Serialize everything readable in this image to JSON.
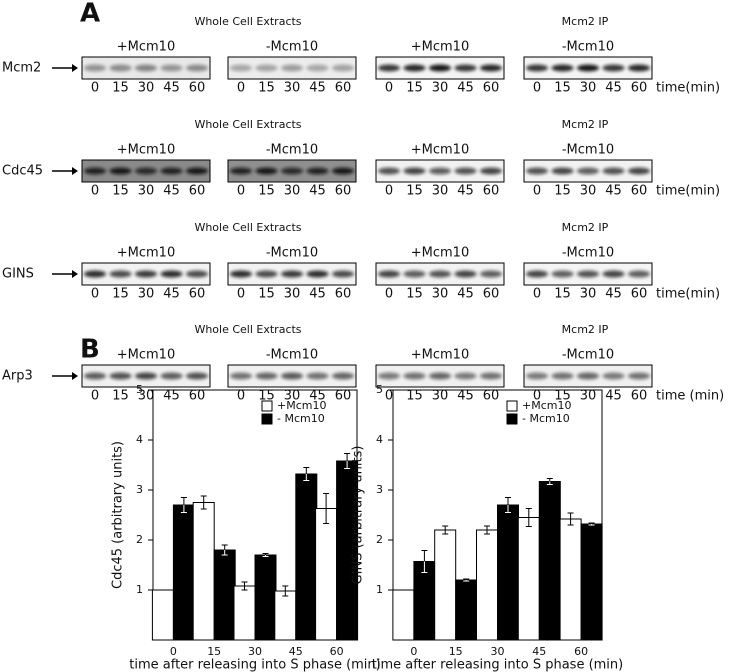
{
  "panel_labels": [
    "A",
    "B"
  ],
  "blots": {
    "groups": [
      "Whole Cell Extracts",
      "Mcm2 IP"
    ],
    "conditions": [
      "+Mcm10",
      "-Mcm10"
    ],
    "lanes": [
      "0",
      "15",
      "30",
      "45",
      "60"
    ],
    "rows": [
      {
        "label": "Mcm2",
        "time_unit": "time(min)"
      },
      {
        "label": "Cdc45",
        "time_unit": "time(min)"
      },
      {
        "label": "GINS",
        "time_unit": "time(min)"
      },
      {
        "label": "Arp3",
        "time_unit": "time (min)"
      }
    ]
  },
  "chart_data": [
    {
      "type": "bar",
      "y_label": "Cdc45 (arbitrary units)",
      "x_label": "time after releasing into S phase (min)",
      "categories": [
        "0",
        "15",
        "30",
        "45",
        "60"
      ],
      "series": [
        {
          "name": "+Mcm10",
          "color": "#ffffff",
          "values": [
            1,
            2.75,
            1.08,
            0.98,
            2.63
          ],
          "errors": [
            0,
            0.13,
            0.08,
            0.1,
            0.3
          ]
        },
        {
          "name": "- Mcm10",
          "color": "#000000",
          "values": [
            2.7,
            1.8,
            1.7,
            3.32,
            3.58
          ],
          "errors": [
            0.15,
            0.1,
            0.03,
            0.13,
            0.15
          ]
        }
      ],
      "ylim": [
        0,
        5
      ],
      "yticks": [
        1,
        2,
        3,
        4,
        5
      ],
      "legend": "top-right"
    },
    {
      "type": "bar",
      "y_label": "GINS (arbitrary units)",
      "x_label": "time after releasing into S phase (min)",
      "categories": [
        "0",
        "15",
        "30",
        "45",
        "60"
      ],
      "series": [
        {
          "name": "+Mcm10",
          "color": "#ffffff",
          "values": [
            1,
            2.2,
            2.2,
            2.45,
            2.42
          ],
          "errors": [
            0,
            0.08,
            0.08,
            0.18,
            0.12
          ]
        },
        {
          "name": "- Mcm10",
          "color": "#000000",
          "values": [
            1.57,
            1.2,
            2.7,
            3.17,
            2.32
          ],
          "errors": [
            0.22,
            0.02,
            0.15,
            0.06,
            0.02
          ]
        }
      ],
      "ylim": [
        0,
        5
      ],
      "yticks": [
        1,
        2,
        3,
        4,
        5
      ],
      "legend": "top-right"
    }
  ]
}
